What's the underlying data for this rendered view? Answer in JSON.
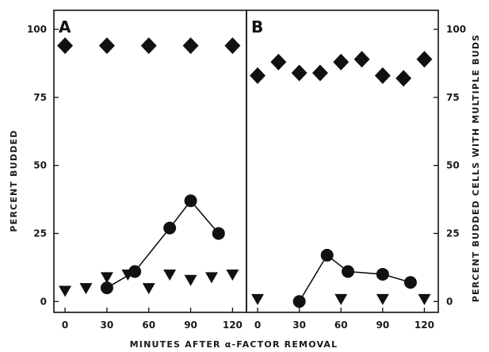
{
  "chart_data": [
    {
      "type": "scatter",
      "panel_label": "A",
      "xlabel": "MINUTES AFTER α-FACTOR REMOVAL",
      "ylabel": "PERCENT BUDDED",
      "xlim": [
        -8,
        130
      ],
      "ylim": [
        -4,
        107
      ],
      "x_ticks": [
        0,
        30,
        60,
        90,
        120
      ],
      "y_ticks": [
        0,
        25,
        50,
        75,
        100
      ],
      "grid": false,
      "legend": "none",
      "series": [
        {
          "marker": "diamond",
          "connected": false,
          "x": [
            0,
            30,
            60,
            90,
            120
          ],
          "y": [
            94,
            94,
            94,
            94,
            94
          ]
        },
        {
          "marker": "circle",
          "connected": true,
          "x": [
            30,
            50,
            75,
            90,
            110
          ],
          "y": [
            5,
            11,
            27,
            37,
            25
          ]
        },
        {
          "marker": "triangle-down",
          "connected": false,
          "x": [
            0,
            15,
            30,
            45,
            60,
            75,
            90,
            105,
            120
          ],
          "y": [
            4,
            5,
            9,
            10,
            5,
            10,
            8,
            9,
            10
          ]
        }
      ]
    },
    {
      "type": "scatter",
      "panel_label": "B",
      "xlabel": "MINUTES AFTER α-FACTOR REMOVAL",
      "ylabel": "PERCENT BUDDED CELLS WITH MULTIPLE BUDS",
      "xlim": [
        -8,
        130
      ],
      "ylim": [
        -4,
        107
      ],
      "x_ticks": [
        0,
        30,
        60,
        90,
        120
      ],
      "y_ticks": [
        0,
        25,
        50,
        75,
        100
      ],
      "grid": false,
      "legend": "none",
      "series": [
        {
          "marker": "diamond",
          "connected": false,
          "x": [
            0,
            15,
            30,
            45,
            60,
            75,
            90,
            105,
            120
          ],
          "y": [
            83,
            88,
            84,
            84,
            88,
            89,
            83,
            82,
            89
          ]
        },
        {
          "marker": "circle",
          "connected": true,
          "x": [
            30,
            50,
            65,
            90,
            110
          ],
          "y": [
            0,
            17,
            11,
            10,
            7
          ]
        },
        {
          "marker": "triangle-down",
          "connected": false,
          "x": [
            0,
            60,
            90,
            120
          ],
          "y": [
            1,
            1,
            1,
            1
          ]
        }
      ]
    }
  ]
}
